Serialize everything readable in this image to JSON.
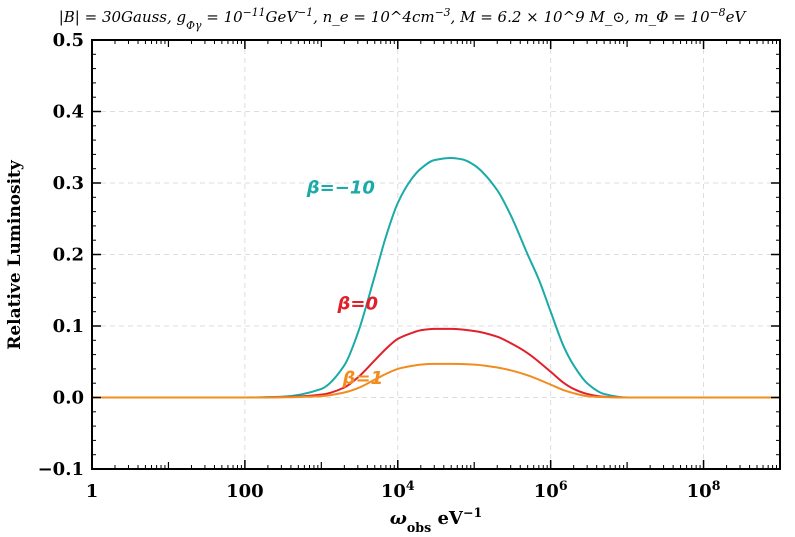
{
  "chart_data": {
    "type": "line",
    "title": "|B| = 30Gauss, g_{Φγ} = 10^{−11}GeV^{−1}, n_e = 10^4cm^{−3}, M = 6.2 × 10^9 M_⊙, m_Φ = 10^{−8}eV",
    "xlabel": "ω_obs eV^−1",
    "ylabel": "Relative Luminosity",
    "x_scale": "log",
    "xlim": [
      1,
      1000000000
    ],
    "ylim": [
      -0.1,
      0.5
    ],
    "grid": true,
    "x_ticks": [
      {
        "value": 1,
        "label": "1"
      },
      {
        "value": 100,
        "label": "100"
      },
      {
        "value": 10000,
        "base": "10",
        "exp": "4"
      },
      {
        "value": 1000000,
        "base": "10",
        "exp": "6"
      },
      {
        "value": 100000000,
        "base": "10",
        "exp": "8"
      }
    ],
    "y_ticks": [
      {
        "value": -0.1,
        "label": "−0.1"
      },
      {
        "value": 0.0,
        "label": "0.0"
      },
      {
        "value": 0.1,
        "label": "0.1"
      },
      {
        "value": 0.2,
        "label": "0.2"
      },
      {
        "value": 0.3,
        "label": "0.3"
      },
      {
        "value": 0.4,
        "label": "0.4"
      },
      {
        "value": 0.5,
        "label": "0.5"
      }
    ],
    "series": [
      {
        "name": "β=−10",
        "color": "#1aaaa8",
        "x": [
          1,
          100,
          300,
          1000,
          2000,
          3000,
          5000,
          7000,
          10000,
          15000,
          20000,
          30000,
          50000,
          70000,
          100000,
          200000,
          300000,
          500000,
          700000,
          1000000,
          1500000,
          2000000,
          3000000,
          5000000,
          10000000,
          100000000,
          1000000000
        ],
        "y": [
          0,
          0,
          0.001,
          0.012,
          0.045,
          0.09,
          0.17,
          0.225,
          0.272,
          0.305,
          0.32,
          0.332,
          0.335,
          0.333,
          0.325,
          0.29,
          0.255,
          0.2,
          0.165,
          0.12,
          0.07,
          0.045,
          0.02,
          0.005,
          0,
          0,
          0
        ]
      },
      {
        "name": "β=0",
        "color": "#e0202a",
        "x": [
          1,
          100,
          300,
          1000,
          2000,
          3000,
          5000,
          7000,
          10000,
          15000,
          20000,
          30000,
          50000,
          100000,
          200000,
          300000,
          500000,
          1000000,
          1500000,
          2000000,
          3000000,
          5000000,
          10000000,
          100000000,
          1000000000
        ],
        "y": [
          0,
          0,
          0.0005,
          0.004,
          0.014,
          0.028,
          0.052,
          0.068,
          0.082,
          0.09,
          0.094,
          0.096,
          0.096,
          0.093,
          0.085,
          0.076,
          0.062,
          0.036,
          0.02,
          0.012,
          0.005,
          0.001,
          0,
          0,
          0
        ]
      },
      {
        "name": "β=1",
        "color": "#f28c1e",
        "x": [
          1,
          100,
          300,
          1000,
          2000,
          3000,
          5000,
          7000,
          10000,
          15000,
          20000,
          30000,
          50000,
          100000,
          200000,
          300000,
          500000,
          1000000,
          1500000,
          2000000,
          3000000,
          5000000,
          10000000,
          100000000,
          1000000000
        ],
        "y": [
          0,
          0,
          0.0003,
          0.002,
          0.007,
          0.013,
          0.025,
          0.033,
          0.04,
          0.044,
          0.046,
          0.047,
          0.047,
          0.046,
          0.042,
          0.038,
          0.031,
          0.018,
          0.01,
          0.006,
          0.002,
          0.0005,
          0,
          0,
          0
        ]
      }
    ],
    "annotations": [
      {
        "text": "β=−10",
        "series": 0,
        "x": 1800,
        "y": 0.285
      },
      {
        "text": "β=0",
        "series": 1,
        "x": 3000,
        "y": 0.123
      },
      {
        "text": "β=1",
        "series": 2,
        "x": 3500,
        "y": 0.019
      }
    ]
  }
}
